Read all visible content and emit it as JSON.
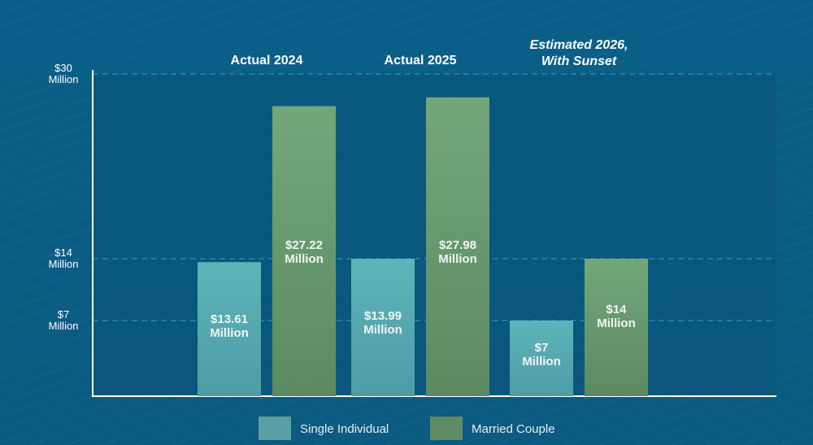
{
  "chart_data": {
    "type": "bar",
    "categories": [
      "Actual 2024",
      "Actual 2025",
      "Estimated 2026,\nWith Sunset"
    ],
    "series": [
      {
        "name": "Single Individual",
        "values": [
          13.61,
          13.99,
          7
        ],
        "labels": [
          "$13.61\nMillion",
          "$13.99\nMillion",
          "$7\nMillion"
        ],
        "color": "#5fb4b9"
      },
      {
        "name": "Married Couple",
        "values": [
          27.22,
          27.98,
          14
        ],
        "labels": [
          "$27.22\nMillion",
          "$27.98\nMillion",
          "$14\nMillion"
        ],
        "color": "#73a77a"
      }
    ],
    "yticks": [
      {
        "value": 7,
        "label": "$7\nMillion"
      },
      {
        "value": 14,
        "label": "$14\nMillion"
      },
      {
        "value": 30,
        "label": "$30\nMillion"
      }
    ],
    "ylim": [
      0,
      30
    ],
    "units": "Million USD",
    "grid": "dashed at ticks",
    "legend_placement": "bottom-center",
    "colors": {
      "background": "#0c6088",
      "plot_area": "#0a5479",
      "grid": "#2f8fb8",
      "axis": "#ffffff"
    }
  }
}
